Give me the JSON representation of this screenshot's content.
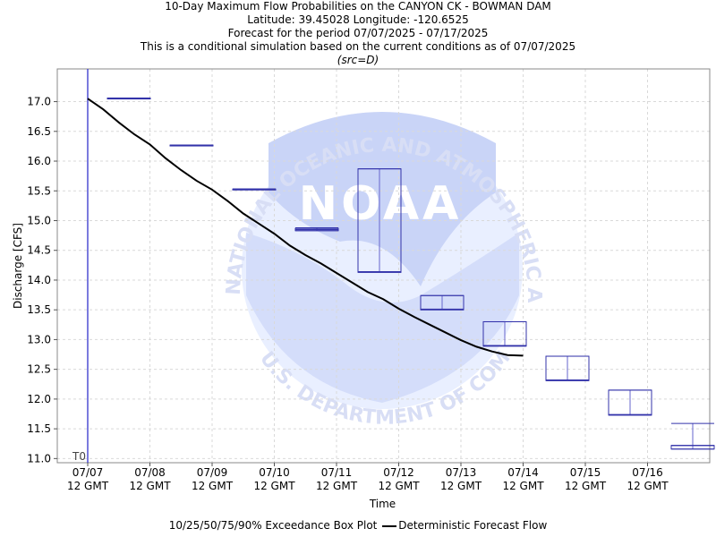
{
  "title_lines": [
    "10-Day Maximum Flow Probabilities on the CANYON CK - BOWMAN DAM",
    "Latitude: 39.45028 Longitude: -120.6525",
    "Forecast for the period 07/07/2025 - 07/17/2025",
    "This is a conditional simulation based on the current conditions as of 07/07/2025"
  ],
  "source_note": "(src=D)",
  "watermark": {
    "text_top": "NATIONAL OCEANIC AND ATMOSPHERIC ADMINISTRATION",
    "text_bottom": "U.S. DEPARTMENT OF COMMERCE",
    "logo_text": "NOAA"
  },
  "legend": {
    "box_label": "10/25/50/75/90% Exceedance Box Plot",
    "line_label": "Deterministic Forecast Flow"
  },
  "chart_data": {
    "type": "box+line",
    "xlabel": "Time",
    "ylabel": "Discharge [CFS]",
    "ylim": [
      10.93,
      17.55
    ],
    "xlim_days": [
      0,
      10
    ],
    "grid": true,
    "x_ticks": [
      "07/07",
      "07/08",
      "07/09",
      "07/10",
      "07/11",
      "07/12",
      "07/13",
      "07/14",
      "07/15",
      "07/16"
    ],
    "x_tick_sublabel": "12 GMT",
    "y_ticks": [
      11.0,
      11.5,
      12.0,
      12.5,
      13.0,
      13.5,
      14.0,
      14.5,
      15.0,
      15.5,
      16.0,
      16.5,
      17.0
    ],
    "t0_label": "T0",
    "box_colors": {
      "box": "#3333aa",
      "whisker": "#6666cc"
    },
    "line_color": "#000000",
    "boxes": [
      {
        "day": 1,
        "p10": 17.06,
        "p25": 17.06,
        "p50": 17.06,
        "p75": 17.06,
        "p90": 17.06
      },
      {
        "day": 2,
        "p10": 16.27,
        "p25": 16.27,
        "p50": 16.27,
        "p75": 16.27,
        "p90": 16.27
      },
      {
        "day": 3,
        "p10": 15.53,
        "p25": 15.53,
        "p50": 15.53,
        "p75": 15.53,
        "p90": 15.53
      },
      {
        "day": 4,
        "p10": 14.83,
        "p25": 14.83,
        "p50": 14.85,
        "p75": 14.87,
        "p90": 14.88
      },
      {
        "day": 5,
        "p10": 14.13,
        "p25": 14.13,
        "p50": 14.14,
        "p75": 15.87,
        "p90": 15.87
      },
      {
        "day": 6,
        "p10": 13.5,
        "p25": 13.5,
        "p50": 13.51,
        "p75": 13.74,
        "p90": 13.74
      },
      {
        "day": 7,
        "p10": 12.89,
        "p25": 12.89,
        "p50": 12.9,
        "p75": 13.3,
        "p90": 13.3
      },
      {
        "day": 8,
        "p10": 12.31,
        "p25": 12.31,
        "p50": 12.32,
        "p75": 12.72,
        "p90": 12.72
      },
      {
        "day": 9,
        "p10": 11.73,
        "p25": 11.73,
        "p50": 11.74,
        "p75": 12.15,
        "p90": 12.15
      },
      {
        "day": 10,
        "p10": 11.16,
        "p25": 11.16,
        "p50": 11.22,
        "p75": 11.22,
        "p90": 11.59
      }
    ],
    "line": {
      "name": "Deterministic Forecast Flow",
      "x_days": [
        0.0,
        0.25,
        0.5,
        0.75,
        1.0,
        1.25,
        1.5,
        1.75,
        2.0,
        2.25,
        2.5,
        2.75,
        3.0,
        3.25,
        3.5,
        3.75,
        4.0,
        4.25,
        4.5,
        4.75,
        5.0,
        5.25,
        5.5,
        5.75,
        6.0,
        6.25,
        6.5,
        6.75,
        7.0
      ],
      "values": [
        17.05,
        16.87,
        16.65,
        16.45,
        16.28,
        16.05,
        15.85,
        15.67,
        15.52,
        15.33,
        15.12,
        14.95,
        14.78,
        14.58,
        14.42,
        14.28,
        14.12,
        13.96,
        13.8,
        13.68,
        13.52,
        13.38,
        13.25,
        13.12,
        12.99,
        12.88,
        12.8,
        12.74,
        12.73
      ]
    }
  }
}
